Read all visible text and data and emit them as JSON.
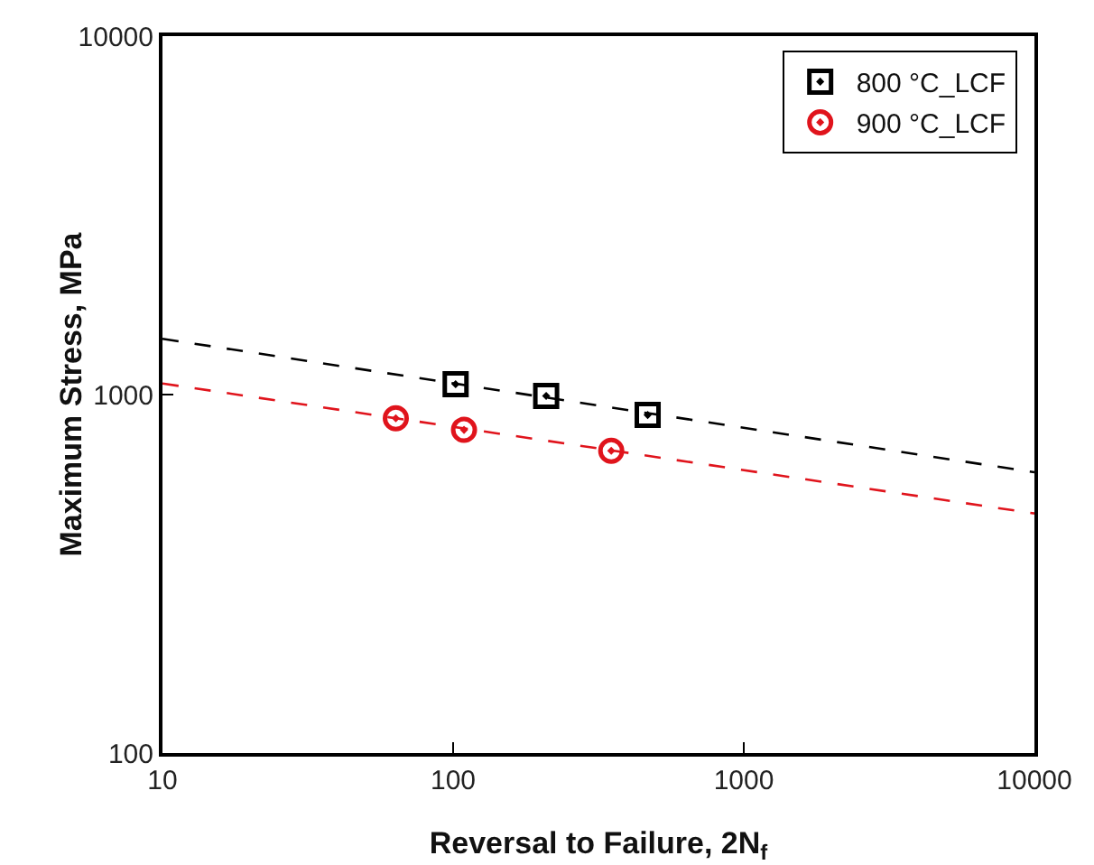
{
  "chart_data": {
    "type": "scatter",
    "xlabel": "Reversal to Failure, 2N$_{f}$",
    "ylabel": "Maximum Stress, MPa",
    "log": "xy",
    "xlim": [
      10,
      10000
    ],
    "xticks": [
      10,
      100,
      1000,
      10000
    ],
    "ylim": [
      100,
      10000
    ],
    "yticks": [
      100,
      1000,
      10000
    ],
    "grid": false,
    "legend": "top right",
    "series": [
      {
        "name": "800 °C_LCF",
        "color": "#000000",
        "marker": "square",
        "x": [
          102,
          209,
          467
        ],
        "values": [
          1069,
          991,
          877
        ]
      },
      {
        "name": "900 °C_LCF",
        "color": "#e0141c",
        "marker": "circle",
        "x": [
          63.5,
          109,
          350
        ],
        "values": [
          859,
          797,
          697
        ]
      },
      {
        "type": "line",
        "color": "#000000",
        "line_style": "dashed",
        "marker": "none",
        "x": [
          10,
          10000
        ],
        "values": [
          1431,
          607
        ]
      },
      {
        "type": "line",
        "color": "#e0141c",
        "line_style": "dashed",
        "marker": "none",
        "x": [
          10,
          10000
        ],
        "values": [
          1074,
          466
        ]
      }
    ]
  }
}
